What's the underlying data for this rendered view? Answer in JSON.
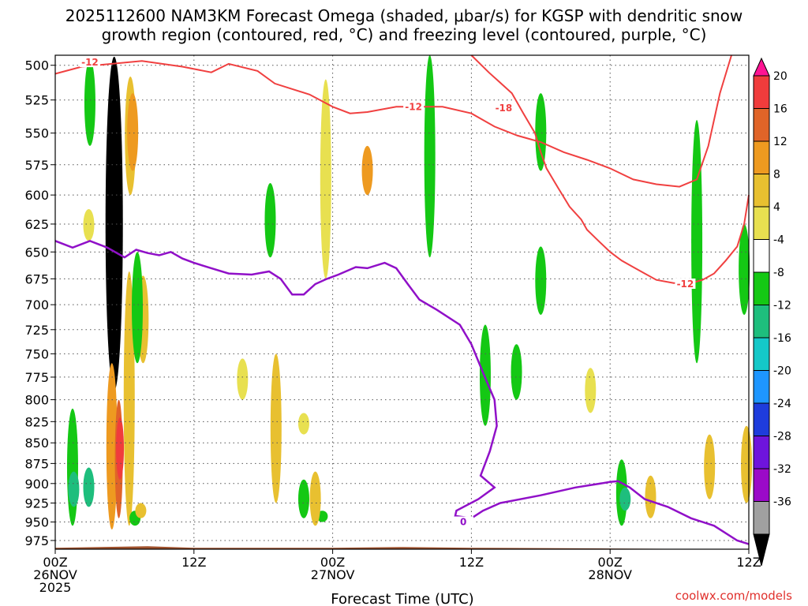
{
  "title": {
    "line1": "2025112600 NAM3KM Forecast Omega (shaded, μbar/s) for KGSP with dendritic snow",
    "line2": "growth region (contoured, red, °C) and freezing level (contoured, purple, °C)"
  },
  "footer": {
    "xlabel": "Forecast Time (UTC)",
    "credit": "coolwx.com/models",
    "year": "2025"
  },
  "colors": {
    "red_contour": "#f04040",
    "purple_contour": "#9010c8",
    "terrain": "#a0522d",
    "grid": "#555555"
  },
  "chart_data": {
    "type": "heatmap",
    "title": "2025112600 NAM3KM Forecast Omega (shaded, μbar/s) for KGSP with dendritic snow growth region (contoured, red, °C) and freezing level (contoured, purple, °C)",
    "xlabel": "Forecast Time (UTC)",
    "ylabel": "",
    "x_unit": "forecast hour",
    "xlim": [
      0,
      60
    ],
    "ylim": [
      987,
      493
    ],
    "y_log_pressure": true,
    "grid": true,
    "y_ticks": [
      500,
      525,
      550,
      575,
      600,
      625,
      650,
      675,
      700,
      725,
      750,
      775,
      800,
      825,
      850,
      875,
      900,
      925,
      950,
      975
    ],
    "x_ticks": [
      {
        "hour": 0,
        "labels": [
          "00Z",
          "26NOV",
          "2025"
        ]
      },
      {
        "hour": 12,
        "labels": [
          "12Z"
        ]
      },
      {
        "hour": 24,
        "labels": [
          "00Z",
          "27NOV"
        ]
      },
      {
        "hour": 36,
        "labels": [
          "12Z"
        ]
      },
      {
        "hour": 48,
        "labels": [
          "00Z",
          "28NOV"
        ]
      },
      {
        "hour": 60,
        "labels": [
          "12Z"
        ]
      }
    ],
    "colorbar": {
      "levels": [
        20,
        16,
        12,
        8,
        4,
        -4,
        -8,
        -12,
        -16,
        -20,
        -24,
        -28,
        -32,
        -36
      ],
      "colors": [
        "#ff1493",
        "#f03c3c",
        "#e06428",
        "#ee9a20",
        "#e8c030",
        "#e8e050",
        "#ffffff",
        "#14c814",
        "#1ebe7d",
        "#14c8c8",
        "#1e96ff",
        "#1e3cdc",
        "#6e14dc",
        "#9b0ac8",
        "#a0a0a0",
        "#000000"
      ]
    },
    "omega_blobs": [
      {
        "v": -8,
        "h": 3.0,
        "p": [
          496,
          560
        ]
      },
      {
        "v": 6,
        "h": 6.5,
        "p": [
          508,
          600
        ]
      },
      {
        "v": 12,
        "h": 6.7,
        "p": [
          520,
          580
        ]
      },
      {
        "v": 4,
        "h": 2.9,
        "p": [
          612,
          640
        ]
      },
      {
        "v": -36,
        "h": 5.1,
        "p": [
          494,
          790
        ]
      },
      {
        "v": 6,
        "h": 6.4,
        "p": [
          668,
          955
        ]
      },
      {
        "v": 6,
        "h": 7.6,
        "p": [
          672,
          760
        ]
      },
      {
        "v": -8,
        "h": 7.1,
        "p": [
          650,
          760
        ]
      },
      {
        "v": 12,
        "h": 4.9,
        "p": [
          760,
          960
        ]
      },
      {
        "v": 16,
        "h": 5.5,
        "p": [
          800,
          945
        ]
      },
      {
        "v": 20,
        "h": 5.6,
        "p": [
          820,
          895
        ]
      },
      {
        "v": -8,
        "h": 1.5,
        "p": [
          810,
          955
        ]
      },
      {
        "v": -12,
        "h": 1.6,
        "p": [
          885,
          930
        ]
      },
      {
        "v": -12,
        "h": 2.9,
        "p": [
          880,
          930
        ]
      },
      {
        "v": -8,
        "h": 6.9,
        "p": [
          935,
          955
        ]
      },
      {
        "v": 6,
        "h": 7.4,
        "p": [
          925,
          945
        ]
      },
      {
        "v": 4,
        "h": 16.2,
        "p": [
          755,
          800
        ]
      },
      {
        "v": 6,
        "h": 19.1,
        "p": [
          750,
          925
        ]
      },
      {
        "v": 4,
        "h": 21.5,
        "p": [
          815,
          840
        ]
      },
      {
        "v": 4,
        "h": 23.4,
        "p": [
          510,
          675
        ]
      },
      {
        "v": 12,
        "h": 27.0,
        "p": [
          560,
          600
        ]
      },
      {
        "v": -8,
        "h": 18.6,
        "p": [
          590,
          655
        ]
      },
      {
        "v": -8,
        "h": 32.4,
        "p": [
          493,
          655
        ]
      },
      {
        "v": -8,
        "h": 23.1,
        "p": [
          935,
          950
        ]
      },
      {
        "v": 6,
        "h": 22.5,
        "p": [
          885,
          955
        ]
      },
      {
        "v": -8,
        "h": 21.5,
        "p": [
          895,
          945
        ]
      },
      {
        "v": -8,
        "h": 37.2,
        "p": [
          720,
          830
        ]
      },
      {
        "v": -8,
        "h": 39.9,
        "p": [
          740,
          800
        ]
      },
      {
        "v": 4,
        "h": 46.3,
        "p": [
          765,
          815
        ]
      },
      {
        "v": -8,
        "h": 42.0,
        "p": [
          520,
          580
        ]
      },
      {
        "v": -8,
        "h": 42.0,
        "p": [
          645,
          710
        ]
      },
      {
        "v": -8,
        "h": 49.0,
        "p": [
          870,
          955
        ]
      },
      {
        "v": -12,
        "h": 49.3,
        "p": [
          905,
          935
        ]
      },
      {
        "v": 6,
        "h": 51.5,
        "p": [
          890,
          945
        ]
      },
      {
        "v": 6,
        "h": 56.6,
        "p": [
          840,
          920
        ]
      },
      {
        "v": 6,
        "h": 59.8,
        "p": [
          830,
          925
        ]
      },
      {
        "v": -8,
        "h": 55.5,
        "p": [
          540,
          760
        ]
      },
      {
        "v": -8,
        "h": 59.6,
        "p": [
          625,
          710
        ]
      }
    ],
    "red_contour_upper": {
      "label": "-12",
      "points": [
        [
          0,
          506
        ],
        [
          2.3,
          501
        ],
        [
          7.5,
          497
        ],
        [
          11,
          501
        ],
        [
          13.5,
          505
        ],
        [
          15,
          499
        ],
        [
          17.5,
          504
        ],
        [
          19,
          513
        ],
        [
          22,
          521
        ],
        [
          24,
          530
        ],
        [
          25.5,
          535
        ],
        [
          27,
          534
        ],
        [
          29.5,
          530
        ],
        [
          33.5,
          530
        ],
        [
          36,
          535
        ],
        [
          38,
          545
        ],
        [
          40,
          552
        ],
        [
          42,
          557
        ],
        [
          44,
          565
        ],
        [
          46,
          571
        ],
        [
          48,
          578
        ],
        [
          50,
          587
        ],
        [
          52,
          591
        ],
        [
          54,
          593
        ],
        [
          55.5,
          587
        ],
        [
          56.5,
          560
        ],
        [
          57.5,
          520
        ],
        [
          58.5,
          493
        ]
      ]
    },
    "red_contour_lower": {
      "label": "-18",
      "points": [
        [
          36,
          493
        ],
        [
          37.5,
          505
        ],
        [
          39.5,
          520
        ],
        [
          40.5,
          535
        ],
        [
          41.5,
          550
        ],
        [
          42,
          565
        ],
        [
          42.5,
          578
        ],
        [
          43.5,
          594
        ],
        [
          44.5,
          610
        ],
        [
          45.5,
          621
        ],
        [
          46,
          630
        ],
        [
          47,
          640
        ],
        [
          48,
          650
        ],
        [
          49,
          658
        ],
        [
          50,
          664
        ],
        [
          51,
          670
        ],
        [
          52,
          676
        ],
        [
          53.5,
          679
        ],
        [
          55,
          679
        ],
        [
          56,
          676
        ],
        [
          57,
          670
        ],
        [
          58,
          658
        ],
        [
          59,
          645
        ],
        [
          59.6,
          625
        ],
        [
          60,
          600
        ]
      ]
    },
    "purple_contour": {
      "label": "0",
      "points": [
        [
          0,
          640
        ],
        [
          1.5,
          646
        ],
        [
          3,
          640
        ],
        [
          4.5,
          646
        ],
        [
          6,
          655
        ],
        [
          7,
          648
        ],
        [
          8,
          651
        ],
        [
          9,
          653
        ],
        [
          10,
          650
        ],
        [
          11,
          656
        ],
        [
          12,
          660
        ],
        [
          13.5,
          665
        ],
        [
          15,
          670
        ],
        [
          17,
          671
        ],
        [
          18.5,
          668
        ],
        [
          19.5,
          675
        ],
        [
          20.5,
          690
        ],
        [
          21.5,
          690
        ],
        [
          22.5,
          680
        ],
        [
          23.5,
          675
        ],
        [
          24.5,
          671
        ],
        [
          26,
          664
        ],
        [
          27,
          665
        ],
        [
          28.5,
          660
        ],
        [
          29.5,
          665
        ],
        [
          30.5,
          680
        ],
        [
          31.5,
          695
        ],
        [
          33,
          705
        ],
        [
          35,
          720
        ],
        [
          36,
          740
        ],
        [
          37,
          770
        ],
        [
          38,
          800
        ],
        [
          38.2,
          830
        ],
        [
          37.6,
          860
        ],
        [
          36.8,
          890
        ],
        [
          38,
          905
        ],
        [
          36.6,
          920
        ],
        [
          34.7,
          935
        ],
        [
          34.6,
          942
        ],
        [
          36,
          945
        ],
        [
          37,
          935
        ],
        [
          38.5,
          925
        ],
        [
          42,
          915
        ],
        [
          45,
          905
        ],
        [
          48,
          898
        ],
        [
          48.7,
          897
        ],
        [
          49.7,
          905
        ],
        [
          51,
          920
        ],
        [
          53,
          930
        ],
        [
          55,
          945
        ],
        [
          57,
          955
        ],
        [
          59,
          975
        ],
        [
          60,
          980
        ]
      ]
    },
    "terrain": {
      "points": [
        [
          0,
          985
        ],
        [
          8,
          983
        ],
        [
          12,
          985
        ],
        [
          24,
          985
        ],
        [
          30,
          984
        ],
        [
          36,
          985
        ],
        [
          48,
          986
        ],
        [
          60,
          987
        ]
      ]
    }
  }
}
